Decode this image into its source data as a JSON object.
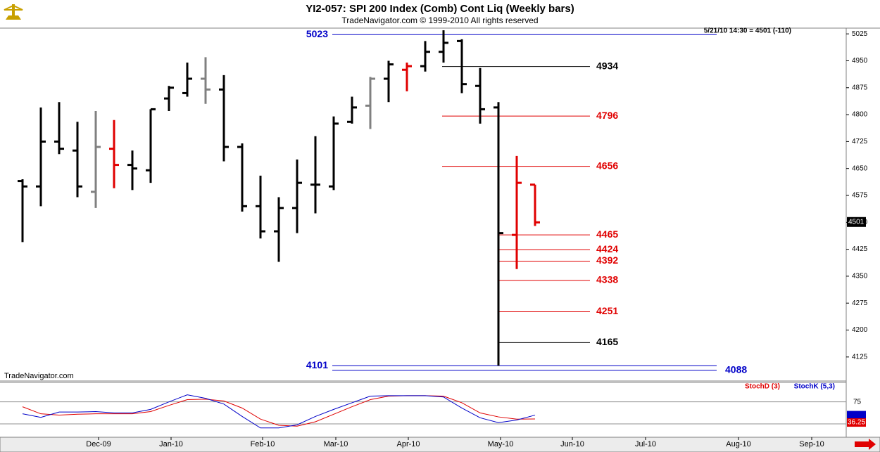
{
  "chart_data": {
    "type": "ohlc",
    "title": "YI2-057:  SPI 200 Index (Comb) Cont Liq  (Weekly bars)",
    "subtitle": "TradeNavigator.com © 1999-2010 All rights reserved",
    "status": "5/21/10 14:30 = 4501 (-110)",
    "watermark": "TradeNavigator.com",
    "last_price": 4501,
    "ylim": [
      4062,
      5041
    ],
    "yticks": [
      4125,
      4200,
      4275,
      4350,
      4425,
      4500,
      4575,
      4650,
      4725,
      4800,
      4875,
      4950,
      5025
    ],
    "months": [
      "Dec-09",
      "Jan-10",
      "Feb-10",
      "Mar-10",
      "Apr-10",
      "May-10",
      "Jun-10",
      "Jul-10",
      "Aug-10",
      "Sep-10"
    ],
    "open": [
      4615,
      4600,
      4725,
      4700,
      4585,
      4705,
      4660,
      4645,
      4845,
      4860,
      4900,
      4870,
      4710,
      4545,
      4475,
      4540,
      4605,
      4600,
      4780,
      4825,
      4900,
      4925,
      4935,
      4975,
      5005,
      4880,
      4820,
      4465,
      4605
    ],
    "high": [
      4620,
      4820,
      4835,
      4780,
      4810,
      4785,
      4700,
      4815,
      4880,
      4945,
      4960,
      4910,
      4720,
      4630,
      4570,
      4675,
      4740,
      4795,
      4850,
      4905,
      4950,
      4945,
      5005,
      5035,
      5010,
      4930,
      4835,
      4685,
      4605
    ],
    "low": [
      4445,
      4545,
      4690,
      4570,
      4540,
      4595,
      4590,
      4610,
      4810,
      4850,
      4830,
      4670,
      4530,
      4455,
      4390,
      4470,
      4525,
      4590,
      4775,
      4760,
      4835,
      4865,
      4920,
      4945,
      4860,
      4775,
      4101,
      4370,
      4490
    ],
    "close": [
      4600,
      4725,
      4705,
      4600,
      4710,
      4660,
      4650,
      4815,
      4875,
      4900,
      4870,
      4710,
      4545,
      4475,
      4540,
      4610,
      4605,
      4775,
      4820,
      4900,
      4940,
      4935,
      4975,
      5000,
      4885,
      4815,
      4470,
      4610,
      4500
    ],
    "colors": [
      "#000000",
      "#000000",
      "#000000",
      "#000000",
      "#808080",
      "#e00000",
      "#000000",
      "#000000",
      "#000000",
      "#000000",
      "#808080",
      "#000000",
      "#000000",
      "#000000",
      "#000000",
      "#000000",
      "#000000",
      "#000000",
      "#000000",
      "#808080",
      "#000000",
      "#e00000",
      "#000000",
      "#000000",
      "#000000",
      "#000000",
      "#000000",
      "#e00000",
      "#e00000"
    ],
    "levels": [
      {
        "value": 5023,
        "color": "#0000c8"
      },
      {
        "value": 4934,
        "color": "#000000"
      },
      {
        "value": 4796,
        "color": "#e00000"
      },
      {
        "value": 4656,
        "color": "#e00000"
      },
      {
        "value": 4465,
        "color": "#e00000"
      },
      {
        "value": 4424,
        "color": "#e00000"
      },
      {
        "value": 4392,
        "color": "#e00000"
      },
      {
        "value": 4338,
        "color": "#e00000"
      },
      {
        "value": 4251,
        "color": "#e00000"
      },
      {
        "value": 4165,
        "color": "#000000"
      },
      {
        "value": 4101,
        "color": "#0000c8"
      },
      {
        "value": 4088,
        "color": "#0000c8"
      }
    ],
    "indicator": {
      "type": "line",
      "ylim": [
        -5,
        119
      ],
      "yticks": [
        75
      ],
      "series": [
        {
          "name": "StochD (3)",
          "color": "#e00000",
          "values": [
            64,
            48,
            45,
            47,
            48,
            48,
            48,
            53,
            67,
            80,
            81,
            77,
            61,
            36,
            22,
            20,
            30,
            47,
            64,
            80,
            88,
            89,
            89,
            88,
            73,
            50,
            41,
            36,
            36.25
          ]
        },
        {
          "name": "StochK (5,3)",
          "color": "#0000c8",
          "values": [
            48,
            40,
            52,
            52,
            53,
            50,
            50,
            58,
            75,
            91,
            83,
            70,
            42,
            16,
            16,
            23,
            42,
            58,
            73,
            88,
            89,
            89,
            89,
            86,
            61,
            39,
            28,
            34,
            45
          ]
        }
      ]
    }
  }
}
